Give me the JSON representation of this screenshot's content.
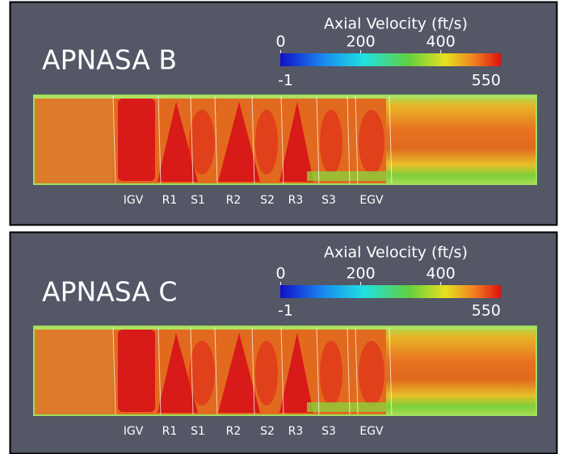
{
  "panels": [
    {
      "title": "APNASA B",
      "colorbar": {
        "title": "Axial Velocity (ft/s)",
        "range": [
          -1,
          550
        ],
        "ticks": [
          0,
          200,
          400
        ]
      },
      "stage_labels": [
        "IGV",
        "R1",
        "S1",
        "R2",
        "S2",
        "R3",
        "S3",
        "EGV"
      ]
    },
    {
      "title": "APNASA C",
      "colorbar": {
        "title": "Axial Velocity (ft/s)",
        "range": [
          -1,
          550
        ],
        "ticks": [
          0,
          200,
          400
        ]
      },
      "stage_labels": [
        "IGV",
        "R1",
        "S1",
        "R2",
        "S2",
        "R3",
        "S3",
        "EGV"
      ]
    }
  ]
}
